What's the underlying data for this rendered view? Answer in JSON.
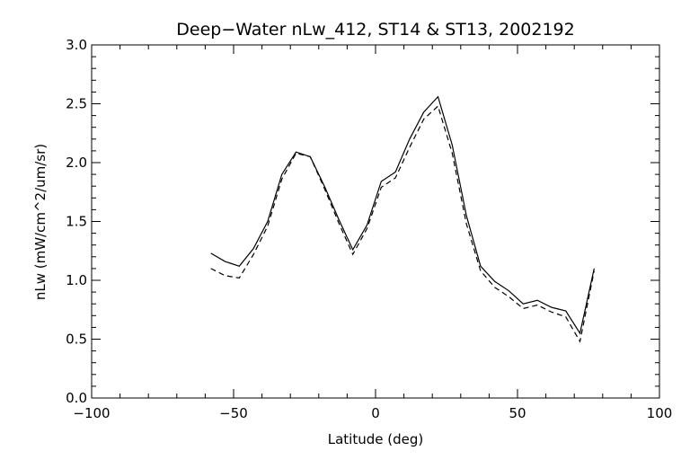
{
  "chart_data": {
    "type": "line",
    "title": "Deep−Water nLw_412, ST14 & ST13, 2002192",
    "xlabel": "Latitude (deg)",
    "ylabel": "nLw (mW/cm^2/um/sr)",
    "xlim": [
      -100,
      100
    ],
    "ylim": [
      0,
      3
    ],
    "x_ticks": [
      -100,
      -50,
      0,
      50,
      100
    ],
    "y_ticks": [
      0.0,
      0.5,
      1.0,
      1.5,
      2.0,
      2.5,
      3.0
    ],
    "x_tick_labels": [
      "−100",
      "−50",
      "0",
      "50",
      "100"
    ],
    "y_tick_labels": [
      "0.0",
      "0.5",
      "1.0",
      "1.5",
      "2.0",
      "2.5",
      "3.0"
    ],
    "grid": false,
    "series": [
      {
        "style": "solid",
        "x": [
          -58,
          -53,
          -48,
          -43,
          -38,
          -33,
          -28,
          -23,
          -18,
          -13,
          -8,
          -3,
          2,
          7,
          12,
          17,
          22,
          27,
          32,
          37,
          42,
          47,
          52,
          57,
          62,
          67,
          72,
          77
        ],
        "y": [
          1.23,
          1.16,
          1.12,
          1.27,
          1.5,
          1.9,
          2.09,
          2.05,
          1.8,
          1.52,
          1.26,
          1.47,
          1.84,
          1.92,
          2.2,
          2.43,
          2.56,
          2.15,
          1.55,
          1.12,
          0.99,
          0.91,
          0.8,
          0.83,
          0.77,
          0.74,
          0.55,
          1.1
        ]
      },
      {
        "style": "dashed",
        "x": [
          -58,
          -53,
          -48,
          -43,
          -38,
          -33,
          -28,
          -23,
          -18,
          -13,
          -8,
          -3,
          2,
          7,
          12,
          17,
          22,
          27,
          32,
          37,
          42,
          47,
          52,
          57,
          62,
          67,
          72,
          77
        ],
        "y": [
          1.1,
          1.04,
          1.02,
          1.22,
          1.46,
          1.86,
          2.08,
          2.05,
          1.78,
          1.49,
          1.22,
          1.44,
          1.79,
          1.87,
          2.13,
          2.37,
          2.48,
          2.08,
          1.48,
          1.08,
          0.94,
          0.86,
          0.76,
          0.79,
          0.73,
          0.69,
          0.48,
          1.08
        ]
      }
    ]
  }
}
